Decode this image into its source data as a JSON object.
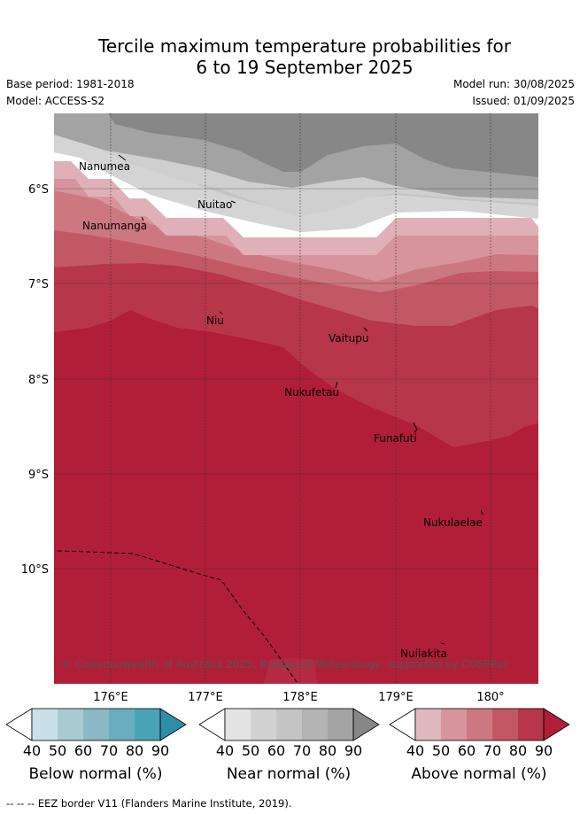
{
  "title": {
    "line1": "Tercile maximum temperature probabilities for",
    "line2": "6 to 19 September 2025"
  },
  "meta": {
    "base_period": "Base period: 1981-2018",
    "model": "Model: ACCESS-S2",
    "model_run": "Model run: 30/08/2025",
    "issued": "Issued: 01/09/2025"
  },
  "map": {
    "lon_ticks": [
      "176°E",
      "177°E",
      "178°E",
      "179°E",
      "180°"
    ],
    "lat_ticks": [
      "6°S",
      "7°S",
      "8°S",
      "9°S",
      "10°S"
    ],
    "places": [
      "Nanumea",
      "Nuitao",
      "Nanumanga",
      "Niu",
      "Vaitupu",
      "Nukufetau",
      "Funafuti",
      "Nukulaelae",
      "Nuilakita"
    ],
    "copyright": "© Commonwealth of Australia 2025, Bureau of Meteorology, supported by COSPPac",
    "colors": {
      "below": [
        "#ffffff",
        "#c8e1e8",
        "#a8cbd2",
        "#8ab8c5",
        "#6aadc0",
        "#48a3b5",
        "#2e8ea8"
      ],
      "near": [
        "#ffffff",
        "#e3e3e3",
        "#d2d2d2",
        "#c4c4c4",
        "#b4b4b4",
        "#a3a3a3",
        "#878787"
      ],
      "above": [
        "#ffffff",
        "#e0b8bf",
        "#d7949c",
        "#cd7881",
        "#c35865",
        "#b83649",
        "#b11e38"
      ]
    }
  },
  "colorbars": {
    "ticks": [
      "40",
      "50",
      "60",
      "70",
      "80",
      "90"
    ],
    "below_title": "Below normal (%)",
    "near_title": "Near normal (%)",
    "above_title": "Above normal (%)"
  },
  "footer": "--  --  -- EEZ border V11 (Flanders Marine Institute, 2019)."
}
